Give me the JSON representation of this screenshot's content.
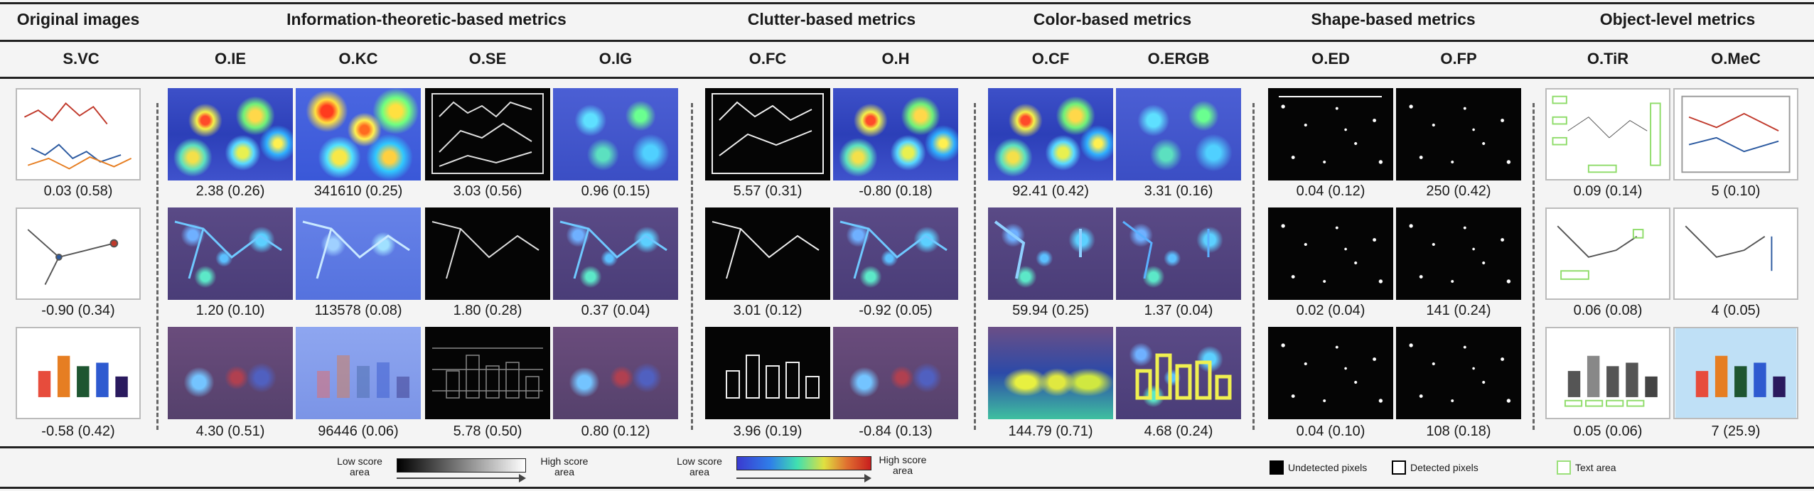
{
  "groups": {
    "original": "Original images",
    "info": "Information-theoretic-based metrics",
    "clutter": "Clutter-based metrics",
    "color": "Color-based metrics",
    "shape": "Shape-based metrics",
    "object": "Object-level metrics"
  },
  "columns": {
    "svc": "S.VC",
    "ie": "O.IE",
    "kc": "O.KC",
    "se": "O.SE",
    "ig": "O.IG",
    "fc": "O.FC",
    "h": "O.H",
    "cf": "O.CF",
    "ergb": "O.ERGB",
    "ed": "O.ED",
    "fp": "O.FP",
    "tir": "O.TiR",
    "mec": "O.MeC"
  },
  "values": {
    "svc": [
      "0.03 (0.58)",
      "-0.90 (0.34)",
      "-0.58 (0.42)"
    ],
    "ie": [
      "2.38 (0.26)",
      "1.20 (0.10)",
      "4.30 (0.51)"
    ],
    "kc": [
      "341610 (0.25)",
      "113578 (0.08)",
      "96446 (0.06)"
    ],
    "se": [
      "3.03 (0.56)",
      "1.80 (0.28)",
      "5.78 (0.50)"
    ],
    "ig": [
      "0.96 (0.15)",
      "0.37 (0.04)",
      "0.80 (0.12)"
    ],
    "fc": [
      "5.57 (0.31)",
      "3.01 (0.12)",
      "3.96 (0.19)"
    ],
    "h": [
      "-0.80 (0.18)",
      "-0.92 (0.05)",
      "-0.84 (0.13)"
    ],
    "cf": [
      "92.41 (0.42)",
      "59.94 (0.25)",
      "144.79 (0.71)"
    ],
    "ergb": [
      "3.31 (0.16)",
      "1.37 (0.04)",
      "4.68 (0.24)"
    ],
    "ed": [
      "0.04 (0.12)",
      "0.02 (0.04)",
      "0.04 (0.10)"
    ],
    "fp": [
      "250 (0.42)",
      "141 (0.24)",
      "108 (0.18)"
    ],
    "tir": [
      "0.09 (0.14)",
      "0.06 (0.08)",
      "0.05 (0.06)"
    ],
    "mec": [
      "5 (0.10)",
      "4 (0.05)",
      "7 (25.9)"
    ]
  },
  "legend": {
    "low": "Low score area",
    "high": "High score area",
    "undetected": "Undetected pixels",
    "detected": "Detected pixels",
    "text_area": "Text area"
  },
  "colors": {
    "heat_low": "#3a3ad0",
    "heat_high": "#c81e1e",
    "text_area": "#9be07a"
  }
}
